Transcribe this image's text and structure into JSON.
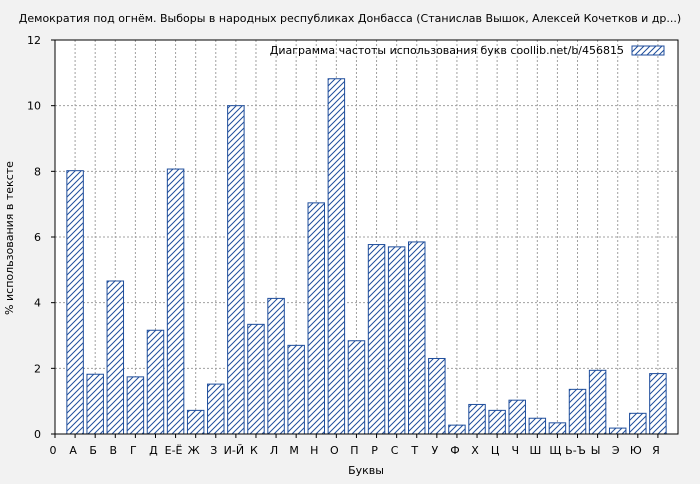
{
  "chart_data": {
    "type": "bar",
    "title": "Демократия под огнём. Выборы в народных республиках Донбасса (Станислав Вышок, Алексей Кочетков и др...)",
    "xlabel": "Буквы",
    "ylabel": "% использования в тексте",
    "ylim": [
      0,
      12
    ],
    "yticks": [
      0,
      2,
      4,
      6,
      8,
      10,
      12
    ],
    "x_tick_labels": [
      "0",
      "А",
      "Б",
      "В",
      "Г",
      "Д",
      "Е-Ё",
      "Ж",
      "З",
      "И-Й",
      "К",
      "Л",
      "М",
      "Н",
      "О",
      "П",
      "Р",
      "С",
      "Т",
      "У",
      "Ф",
      "Х",
      "Ц",
      "Ч",
      "Ш",
      "Щ",
      "Ь-Ъ",
      "Ы",
      "Э",
      "Ю",
      "Я"
    ],
    "categories": [
      "А",
      "Б",
      "В",
      "Г",
      "Д",
      "Е-Ё",
      "Ж",
      "З",
      "И-Й",
      "К",
      "Л",
      "М",
      "Н",
      "О",
      "П",
      "Р",
      "С",
      "Т",
      "У",
      "Ф",
      "Х",
      "Ц",
      "Ч",
      "Ш",
      "Щ",
      "Ь-Ъ",
      "Ы",
      "Э",
      "Ю",
      "Я"
    ],
    "series": [
      {
        "name": "Диаграмма частоты использования букв  coollib.net/b/456815",
        "values": [
          8.02,
          1.82,
          4.66,
          1.74,
          3.16,
          8.07,
          0.72,
          1.52,
          10.0,
          3.34,
          4.13,
          2.7,
          7.04,
          10.82,
          2.84,
          5.77,
          5.7,
          5.85,
          2.3,
          0.27,
          0.9,
          0.72,
          1.03,
          0.48,
          0.34,
          1.36,
          1.94,
          0.18,
          0.63,
          1.84
        ]
      }
    ],
    "grid": true,
    "legend_position": "top-right",
    "colors": {
      "bar_stroke": "#1f4e9c",
      "hatch": "#1f4e9c",
      "bar_fill": "#ffffff",
      "grid": "#a0a0a0",
      "background": "#f2f2f2"
    }
  }
}
